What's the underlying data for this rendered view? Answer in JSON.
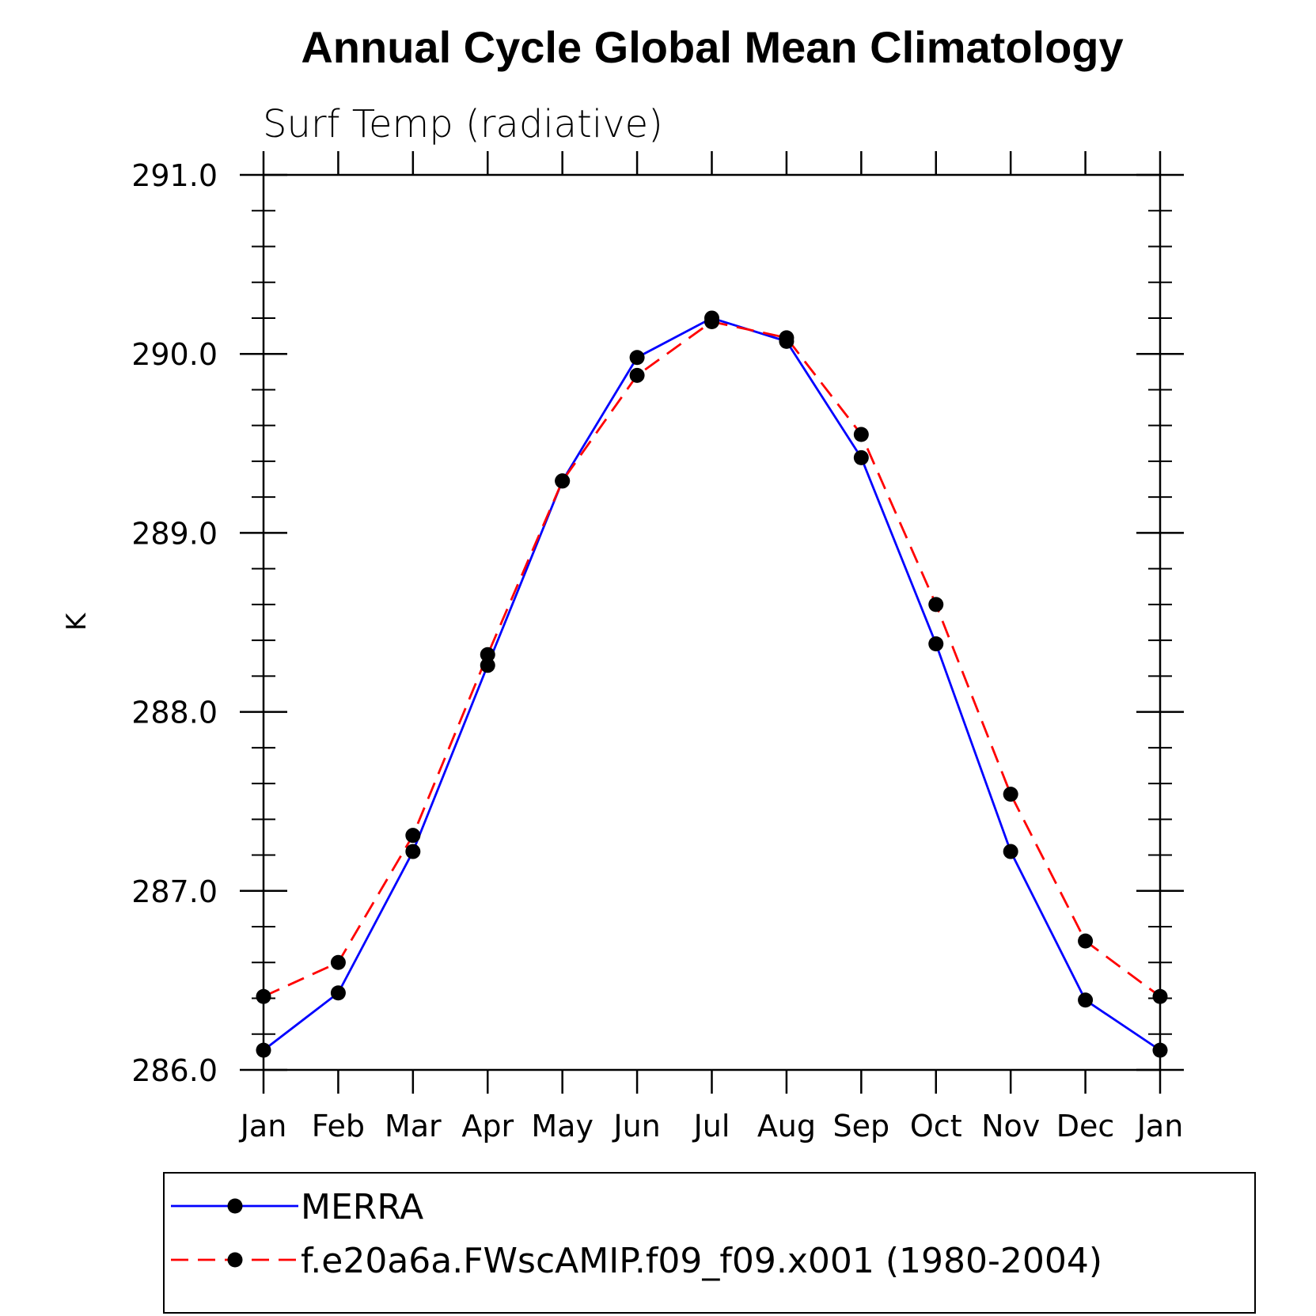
{
  "chart_data": {
    "type": "line",
    "title": "Annual Cycle Global Mean Climatology",
    "subtitle": "Surf Temp (radiative)",
    "xlabel": "",
    "ylabel": "K",
    "categories": [
      "Jan",
      "Feb",
      "Mar",
      "Apr",
      "May",
      "Jun",
      "Jul",
      "Aug",
      "Sep",
      "Oct",
      "Nov",
      "Dec",
      "Jan"
    ],
    "ylim": [
      286.0,
      291.0
    ],
    "yticks": [
      "286.0",
      "287.0",
      "288.0",
      "289.0",
      "290.0",
      "291.0"
    ],
    "grid": false,
    "legend_position": "bottom",
    "series": [
      {
        "name": "MERRA",
        "color": "#0000ff",
        "style": "solid",
        "marker": "circle",
        "values": [
          286.11,
          286.43,
          287.22,
          288.26,
          289.29,
          289.98,
          290.2,
          290.07,
          289.42,
          288.38,
          287.22,
          286.39,
          286.11
        ]
      },
      {
        "name": "f.e20a6a.FWscAMIP.f09_f09.x001 (1980-2004)",
        "color": "#ff0000",
        "style": "dashed",
        "marker": "circle",
        "values": [
          286.41,
          286.6,
          287.31,
          288.32,
          289.29,
          289.88,
          290.18,
          290.09,
          289.55,
          288.6,
          287.54,
          286.72,
          286.41
        ]
      }
    ]
  }
}
